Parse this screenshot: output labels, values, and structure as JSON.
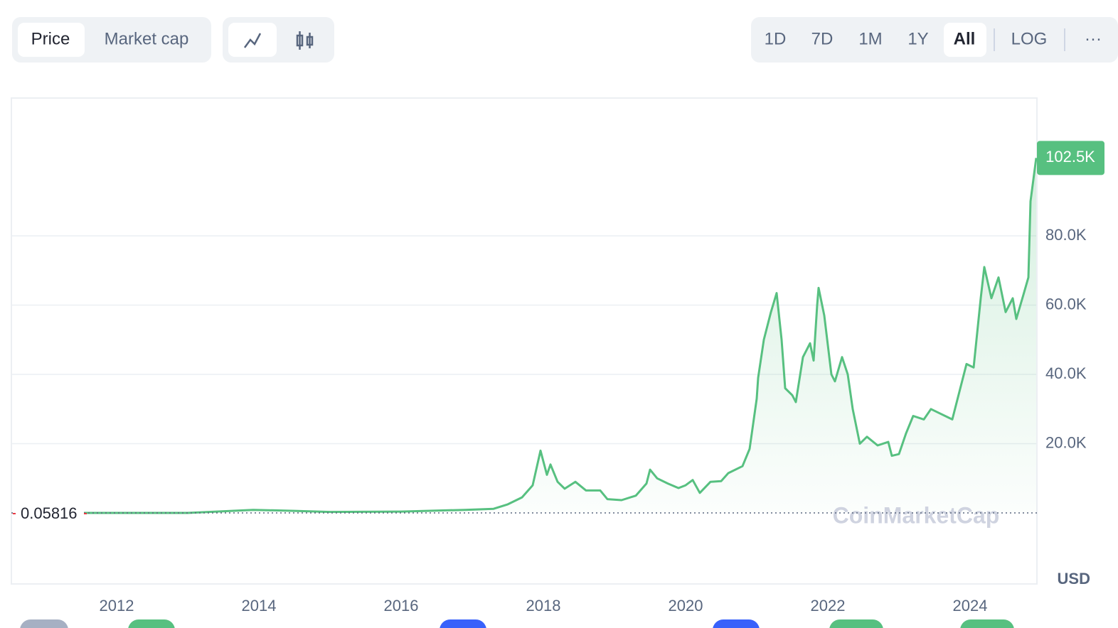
{
  "toolbar": {
    "tabs": [
      "Price",
      "Market cap"
    ],
    "ranges": [
      "1D",
      "7D",
      "1M",
      "1Y",
      "All"
    ],
    "scale": "LOG",
    "more": "···"
  },
  "chart_data": {
    "type": "line",
    "x": [
      2010.6,
      2011.5,
      2012.0,
      2013.0,
      2013.92,
      2014.5,
      2015.0,
      2016.0,
      2016.9,
      2017.3,
      2017.5,
      2017.7,
      2017.85,
      2017.96,
      2018.05,
      2018.1,
      2018.2,
      2018.3,
      2018.45,
      2018.6,
      2018.8,
      2018.9,
      2019.1,
      2019.3,
      2019.45,
      2019.5,
      2019.6,
      2019.75,
      2019.9,
      2020.0,
      2020.1,
      2020.2,
      2020.35,
      2020.5,
      2020.6,
      2020.8,
      2020.9,
      2021.0,
      2021.02,
      2021.1,
      2021.2,
      2021.28,
      2021.35,
      2021.4,
      2021.5,
      2021.55,
      2021.65,
      2021.75,
      2021.8,
      2021.85,
      2021.87,
      2021.95,
      2022.05,
      2022.1,
      2022.2,
      2022.28,
      2022.35,
      2022.45,
      2022.55,
      2022.7,
      2022.85,
      2022.9,
      2023.0,
      2023.1,
      2023.2,
      2023.35,
      2023.45,
      2023.55,
      2023.75,
      2023.85,
      2023.95,
      2024.05,
      2024.15,
      2024.2,
      2024.3,
      2024.4,
      2024.5,
      2024.6,
      2024.65,
      2024.75,
      2024.82,
      2024.85,
      2024.93
    ],
    "series": [
      {
        "name": "Price",
        "color": "#57c080",
        "values": [
          0.06,
          10,
          5,
          15,
          900,
          600,
          300,
          400,
          900,
          1200,
          2500,
          4500,
          8000,
          18000,
          11000,
          14000,
          9000,
          7000,
          9000,
          6500,
          6500,
          4000,
          3700,
          5000,
          8500,
          12500,
          10000,
          8500,
          7200,
          8000,
          9500,
          5800,
          9000,
          9200,
          11500,
          13500,
          18500,
          33000,
          39000,
          50000,
          58000,
          63500,
          50000,
          36000,
          34000,
          32000,
          45000,
          49000,
          44000,
          60000,
          65000,
          57000,
          40000,
          38000,
          45000,
          40000,
          30000,
          20000,
          22000,
          19500,
          20500,
          16500,
          17000,
          23000,
          28000,
          27000,
          30000,
          29000,
          27000,
          35000,
          43000,
          42000,
          62000,
          71000,
          62000,
          68000,
          58000,
          62000,
          56000,
          63000,
          68000,
          90000,
          102500
        ]
      }
    ],
    "xlim": [
      2010.52,
      2024.94
    ],
    "xticks": [
      2012,
      2014,
      2016,
      2018,
      2020,
      2022,
      2024
    ],
    "ylim": [
      -20500,
      119800
    ],
    "yticks": [
      {
        "value": 20000,
        "label": "20.0K"
      },
      {
        "value": 40000,
        "label": "40.0K"
      },
      {
        "value": 60000,
        "label": "60.0K"
      },
      {
        "value": 80000,
        "label": "80.0K"
      }
    ],
    "grid": true,
    "start_price": 0.05816,
    "last_price": {
      "value": 102500,
      "label": "102.5K"
    },
    "watermark": "CoinMarketCap",
    "unit": "USD"
  }
}
